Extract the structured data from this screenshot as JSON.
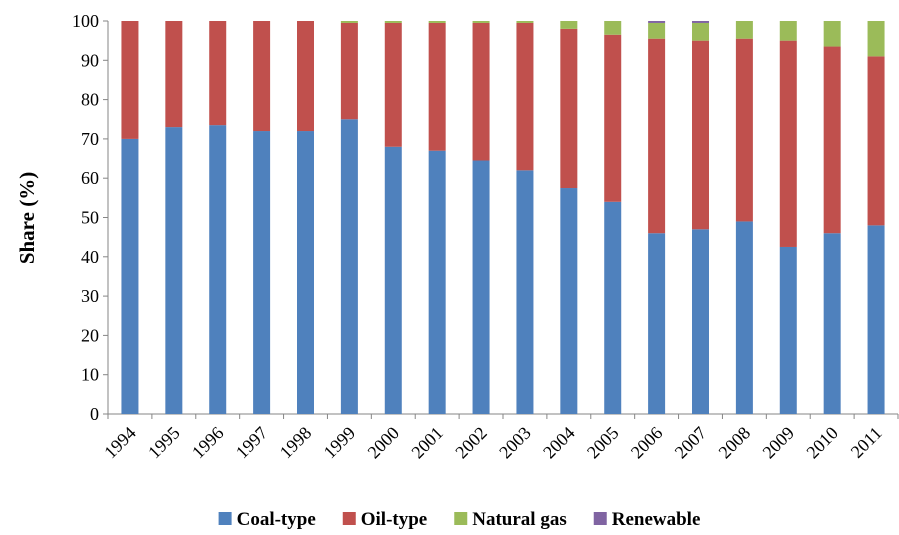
{
  "chart_data": {
    "type": "bar",
    "stacked": true,
    "title": "",
    "xlabel": "",
    "ylabel": "Share (%)",
    "ylim": [
      0,
      100
    ],
    "yticks": [
      0,
      10,
      20,
      30,
      40,
      50,
      60,
      70,
      80,
      90,
      100
    ],
    "grid": false,
    "legend_position": "bottom",
    "categories": [
      "1994",
      "1995",
      "1996",
      "1997",
      "1998",
      "1999",
      "2000",
      "2001",
      "2002",
      "2003",
      "2004",
      "2005",
      "2006",
      "2007",
      "2008",
      "2009",
      "2010",
      "2011"
    ],
    "series": [
      {
        "name": "Coal-type",
        "color": "#4F81BD",
        "values": [
          70,
          73,
          73.5,
          72,
          72,
          75,
          68,
          67,
          64.5,
          62,
          57.5,
          54,
          46,
          47,
          49,
          42.5,
          46,
          48
        ]
      },
      {
        "name": "Oil-type",
        "color": "#C0504D",
        "values": [
          30,
          27,
          26.5,
          28,
          28,
          24.5,
          31.5,
          32.5,
          35,
          37.5,
          40.5,
          42.5,
          49.5,
          48,
          46.5,
          52.5,
          47.5,
          43
        ]
      },
      {
        "name": "Natural gas",
        "color": "#9BBB59",
        "values": [
          0,
          0,
          0,
          0,
          0,
          0.5,
          0.5,
          0.5,
          0.5,
          0.5,
          2,
          3.5,
          4,
          4.5,
          4.5,
          5,
          6.5,
          9
        ]
      },
      {
        "name": "Renewable",
        "color": "#8064A2",
        "values": [
          0,
          0,
          0,
          0,
          0,
          0,
          0,
          0,
          0,
          0,
          0,
          0,
          0.5,
          0.5,
          0,
          0,
          0,
          0
        ]
      }
    ]
  }
}
